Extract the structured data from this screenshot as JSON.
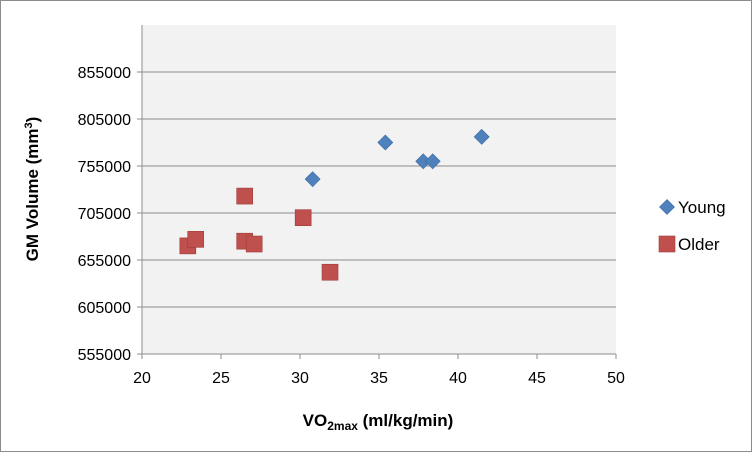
{
  "chart_data": {
    "type": "scatter",
    "title": "",
    "xlabel": {
      "main": "VO",
      "sub": "2max",
      "rest": " (ml/kg/min)"
    },
    "ylabel": {
      "main": "GM Volume (mm",
      "sup": "3",
      "rest": ")"
    },
    "xlim": [
      20,
      50
    ],
    "ylim": [
      555000,
      905000
    ],
    "xticks": [
      20,
      25,
      30,
      35,
      40,
      45,
      50
    ],
    "yticks": [
      555000,
      605000,
      655000,
      705000,
      755000,
      805000,
      855000
    ],
    "xtick_labels": [
      "20",
      "25",
      "30",
      "35",
      "40",
      "45",
      "50"
    ],
    "ytick_labels": [
      "555000",
      "605000",
      "655000",
      "705000",
      "755000",
      "805000",
      "855000"
    ],
    "grid": "horizontal",
    "legend": "right",
    "series": [
      {
        "name": "Young",
        "marker": "diamond",
        "color": "#4f81bd",
        "points": [
          [
            30.8,
            741000
          ],
          [
            35.4,
            780000
          ],
          [
            37.8,
            760000
          ],
          [
            38.4,
            760000
          ],
          [
            41.5,
            786000
          ]
        ]
      },
      {
        "name": "Older",
        "marker": "square",
        "color": "#c0504d",
        "points": [
          [
            22.9,
            670000
          ],
          [
            23.4,
            677000
          ],
          [
            26.5,
            723000
          ],
          [
            26.5,
            675000
          ],
          [
            27.1,
            672000
          ],
          [
            30.2,
            700000
          ],
          [
            31.9,
            642000
          ]
        ]
      }
    ]
  }
}
